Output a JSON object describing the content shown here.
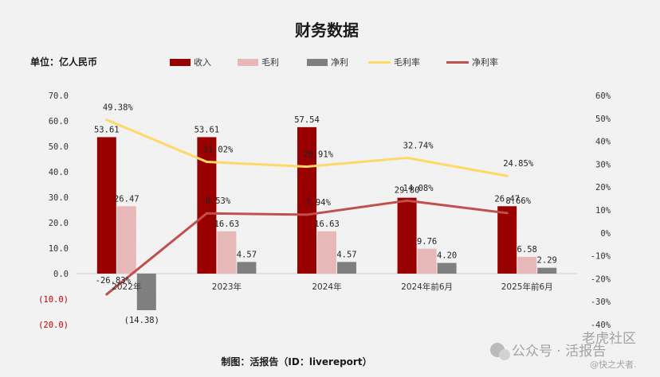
{
  "chart_data": {
    "type": "bar",
    "title": "财务数据",
    "unit_label": "单位：亿人民币",
    "categories": [
      "2022年",
      "2023年",
      "2024年",
      "2024年前6月",
      "2025年前6月"
    ],
    "left_axis": {
      "min": -20,
      "max": 70,
      "step": 10,
      "ticks": [
        "70.0",
        "60.0",
        "50.0",
        "40.0",
        "30.0",
        "20.0",
        "10.0",
        "0.0",
        "(10.0)",
        "(20.0)"
      ]
    },
    "right_axis": {
      "min": -40,
      "max": 60,
      "step": 10,
      "ticks": [
        "60%",
        "50%",
        "40%",
        "30%",
        "20%",
        "10%",
        "0%",
        "-10%",
        "-20%",
        "-30%",
        "-40%"
      ]
    },
    "series": [
      {
        "name": "收入",
        "kind": "bar",
        "axis": "left",
        "color": "#990000",
        "values": [
          53.61,
          53.61,
          57.54,
          29.8,
          26.47
        ],
        "labels": [
          "53.61",
          "53.61",
          "57.54",
          "29.80",
          "26.47"
        ]
      },
      {
        "name": "毛利",
        "kind": "bar",
        "axis": "left",
        "color": "#e6b8b7",
        "values": [
          26.47,
          16.63,
          16.63,
          9.76,
          6.58
        ],
        "labels": [
          "26.47",
          "16.63",
          "16.63",
          "9.76",
          "6.58"
        ]
      },
      {
        "name": "净利",
        "kind": "bar",
        "axis": "left",
        "color": "#7f7f7f",
        "values": [
          -14.38,
          4.57,
          4.57,
          4.2,
          2.29
        ],
        "labels": [
          "(14.38)",
          "4.57",
          "4.57",
          "4.20",
          "2.29"
        ]
      },
      {
        "name": "毛利率",
        "kind": "line",
        "axis": "right",
        "color": "#ffd966",
        "values": [
          49.38,
          31.02,
          28.91,
          32.74,
          24.85
        ],
        "labels": [
          "49.38%",
          "31.02%",
          "28.91%",
          "32.74%",
          "24.85%"
        ]
      },
      {
        "name": "净利率",
        "kind": "line",
        "axis": "right",
        "color": "#c0504d",
        "values": [
          -26.83,
          8.53,
          7.94,
          14.08,
          8.66
        ],
        "labels": [
          "-26.83%",
          "8.53%",
          "7.94%",
          "14.08%",
          "8.66%"
        ]
      }
    ]
  },
  "footer": {
    "credit": "制图：活报告（ID：livereport）"
  },
  "watermark": {
    "line1": "公众号 · 活报告",
    "stamp": "老虎社区",
    "line2": "@快之犬者."
  }
}
